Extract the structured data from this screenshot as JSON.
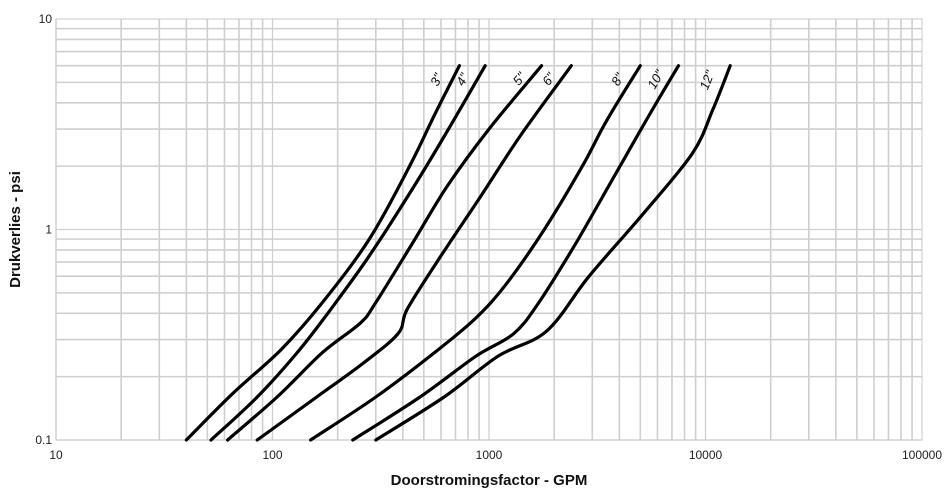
{
  "chart_data": {
    "type": "line",
    "xscale": "log",
    "yscale": "log",
    "xlim": [
      10,
      100000
    ],
    "ylim": [
      0.1,
      10
    ],
    "grid": true,
    "legend": "none",
    "xlabel": "Doorstromingsfactor - GPM",
    "ylabel": "Drukverlies - psi",
    "xticks": [
      "10",
      "100",
      "1000",
      "10000",
      "100000"
    ],
    "yticks": [
      "0.1",
      "1",
      "10"
    ],
    "series": [
      {
        "name": "3\"",
        "points": [
          [
            40,
            0.1
          ],
          [
            65,
            0.165
          ],
          [
            110,
            0.27
          ],
          [
            170,
            0.45
          ],
          [
            280,
            0.9
          ],
          [
            430,
            2.0
          ],
          [
            560,
            3.5
          ],
          [
            730,
            6.0
          ]
        ]
      },
      {
        "name": "4\"",
        "points": [
          [
            52,
            0.1
          ],
          [
            85,
            0.16
          ],
          [
            130,
            0.26
          ],
          [
            180,
            0.4
          ],
          [
            280,
            0.75
          ],
          [
            450,
            1.6
          ],
          [
            650,
            3.0
          ],
          [
            960,
            6.0
          ]
        ]
      },
      {
        "name": "5\"",
        "points": [
          [
            62,
            0.1
          ],
          [
            105,
            0.16
          ],
          [
            170,
            0.26
          ],
          [
            255,
            0.36
          ],
          [
            300,
            0.45
          ],
          [
            440,
            0.85
          ],
          [
            640,
            1.6
          ],
          [
            1000,
            3.0
          ],
          [
            1750,
            6.0
          ]
        ]
      },
      {
        "name": "6\"",
        "points": [
          [
            85,
            0.1
          ],
          [
            160,
            0.16
          ],
          [
            260,
            0.23
          ],
          [
            380,
            0.32
          ],
          [
            420,
            0.42
          ],
          [
            600,
            0.75
          ],
          [
            900,
            1.4
          ],
          [
            1400,
            2.8
          ],
          [
            2400,
            6.0
          ]
        ]
      },
      {
        "name": "8\"",
        "points": [
          [
            150,
            0.1
          ],
          [
            300,
            0.16
          ],
          [
            560,
            0.26
          ],
          [
            870,
            0.38
          ],
          [
            1200,
            0.55
          ],
          [
            1800,
            1.0
          ],
          [
            2700,
            2.0
          ],
          [
            3500,
            3.3
          ],
          [
            5000,
            6.0
          ]
        ]
      },
      {
        "name": "10\"",
        "points": [
          [
            235,
            0.1
          ],
          [
            480,
            0.16
          ],
          [
            870,
            0.25
          ],
          [
            1300,
            0.32
          ],
          [
            1700,
            0.45
          ],
          [
            2500,
            0.85
          ],
          [
            3800,
            1.8
          ],
          [
            5500,
            3.5
          ],
          [
            7500,
            6.0
          ]
        ]
      },
      {
        "name": "12\"",
        "points": [
          [
            300,
            0.1
          ],
          [
            620,
            0.16
          ],
          [
            1100,
            0.25
          ],
          [
            1850,
            0.33
          ],
          [
            2900,
            0.6
          ],
          [
            5200,
            1.2
          ],
          [
            8700,
            2.3
          ],
          [
            10800,
            3.7
          ],
          [
            13000,
            6.0
          ]
        ]
      }
    ]
  }
}
